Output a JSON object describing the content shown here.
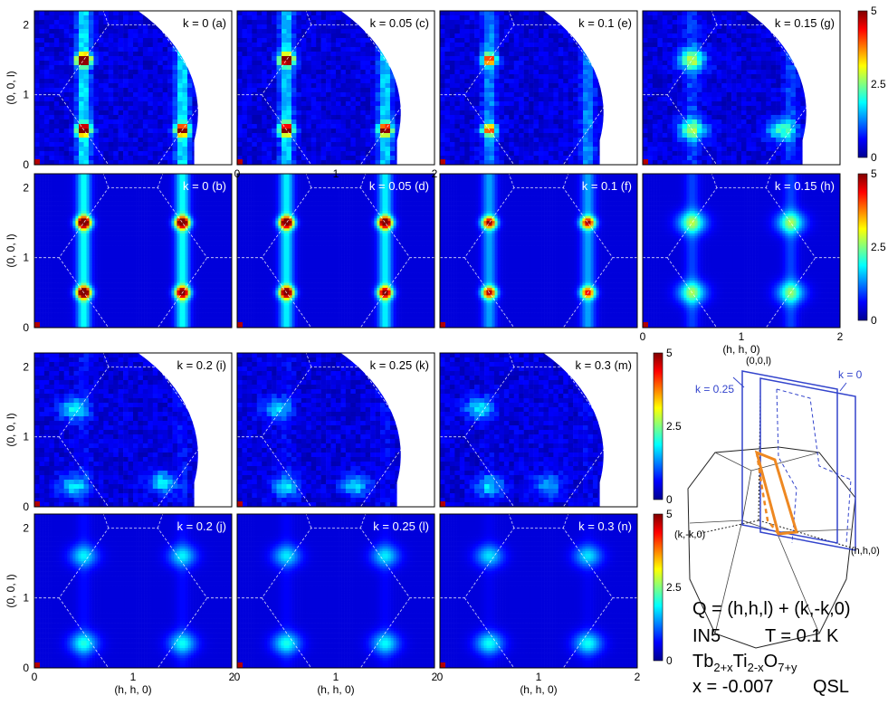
{
  "figure": {
    "colorbar_ticks": [
      "0",
      "2.5",
      "5"
    ],
    "axis_x_label": "(h, h, 0)",
    "axis_y_label": "(0, 0, l)",
    "tick_x": [
      "0",
      "1",
      "2"
    ],
    "tick_y": [
      "0",
      "1",
      "2"
    ]
  },
  "chart_data": [
    {
      "type": "heatmap",
      "panel": "a",
      "label": "k = 0 (a)",
      "kind": "data",
      "k": 0,
      "xlim": [
        0,
        2
      ],
      "ylim": [
        0,
        2.2
      ],
      "zlim": [
        0,
        5
      ],
      "hot_spots": [
        [
          0.5,
          0.5,
          4.6
        ],
        [
          0.5,
          1.5,
          4.8
        ],
        [
          1.5,
          0.5,
          4.0
        ]
      ],
      "rod_intensity": 1.4
    },
    {
      "type": "heatmap",
      "panel": "c",
      "label": "k = 0.05 (c)",
      "kind": "data",
      "k": 0.05,
      "xlim": [
        0,
        2
      ],
      "ylim": [
        0,
        2.2
      ],
      "zlim": [
        0,
        5
      ],
      "hot_spots": [
        [
          0.5,
          0.5,
          4.2
        ],
        [
          0.5,
          1.5,
          4.6
        ],
        [
          1.5,
          0.5,
          3.8
        ]
      ],
      "rod_intensity": 1.3
    },
    {
      "type": "heatmap",
      "panel": "e",
      "label": "k = 0.1 (e)",
      "kind": "data",
      "k": 0.1,
      "xlim": [
        0,
        2
      ],
      "ylim": [
        0,
        2.2
      ],
      "zlim": [
        0,
        5
      ],
      "hot_spots": [
        [
          0.5,
          0.5,
          3.0
        ],
        [
          0.5,
          1.5,
          3.3
        ]
      ],
      "rod_intensity": 0.9
    },
    {
      "type": "heatmap",
      "panel": "g",
      "label": "k = 0.15 (g)",
      "kind": "data",
      "k": 0.15,
      "xlim": [
        0,
        2
      ],
      "ylim": [
        0,
        2.2
      ],
      "zlim": [
        0,
        5
      ],
      "hot_spots": [
        [
          0.5,
          0.5,
          1.9
        ],
        [
          0.5,
          1.5,
          2.0
        ],
        [
          1.4,
          0.5,
          1.6
        ]
      ],
      "rod_intensity": 0.5
    },
    {
      "type": "heatmap",
      "panel": "b",
      "label": "k = 0 (b)",
      "kind": "calc",
      "k": 0,
      "xlim": [
        0,
        2
      ],
      "ylim": [
        0,
        2.2
      ],
      "zlim": [
        0,
        5
      ],
      "hot_spots": [
        [
          0.5,
          0.5,
          4.8
        ],
        [
          0.5,
          1.5,
          4.9
        ],
        [
          1.5,
          0.5,
          4.2
        ],
        [
          1.5,
          1.5,
          4.7
        ]
      ],
      "rod_intensity": 1.5
    },
    {
      "type": "heatmap",
      "panel": "d",
      "label": "k = 0.05 (d)",
      "kind": "calc",
      "k": 0.05,
      "xlim": [
        0,
        2
      ],
      "ylim": [
        0,
        2.2
      ],
      "zlim": [
        0,
        5
      ],
      "hot_spots": [
        [
          0.5,
          0.5,
          4.6
        ],
        [
          0.5,
          1.5,
          4.8
        ],
        [
          1.5,
          0.5,
          4.0
        ],
        [
          1.5,
          1.5,
          4.6
        ]
      ],
      "rod_intensity": 1.4
    },
    {
      "type": "heatmap",
      "panel": "f",
      "label": "k = 0.1 (f)",
      "kind": "calc",
      "k": 0.1,
      "xlim": [
        0,
        2
      ],
      "ylim": [
        0,
        2.2
      ],
      "zlim": [
        0,
        5
      ],
      "hot_spots": [
        [
          0.5,
          0.5,
          3.6
        ],
        [
          0.5,
          1.5,
          3.8
        ],
        [
          1.5,
          0.5,
          3.2
        ],
        [
          1.5,
          1.5,
          3.6
        ]
      ],
      "rod_intensity": 1.0
    },
    {
      "type": "heatmap",
      "panel": "h",
      "label": "k = 0.15 (h)",
      "kind": "calc",
      "k": 0.15,
      "xlim": [
        0,
        2
      ],
      "ylim": [
        0,
        2.2
      ],
      "zlim": [
        0,
        5
      ],
      "hot_spots": [
        [
          0.5,
          0.5,
          1.8
        ],
        [
          0.5,
          1.5,
          1.9
        ],
        [
          1.5,
          0.5,
          1.7
        ],
        [
          1.5,
          1.5,
          1.8
        ]
      ],
      "rod_intensity": 0.5
    },
    {
      "type": "heatmap",
      "panel": "i",
      "label": "k = 0.2 (i)",
      "kind": "data",
      "k": 0.2,
      "xlim": [
        0,
        2
      ],
      "ylim": [
        0,
        2.2
      ],
      "zlim": [
        0,
        5
      ],
      "hot_spots": [
        [
          0.4,
          0.3,
          1.3
        ],
        [
          0.4,
          1.4,
          1.4
        ],
        [
          1.3,
          0.35,
          1.3
        ]
      ],
      "rod_intensity": 0.2
    },
    {
      "type": "heatmap",
      "panel": "k",
      "label": "k = 0.25 (k)",
      "kind": "data",
      "k": 0.25,
      "xlim": [
        0,
        2
      ],
      "ylim": [
        0,
        2.2
      ],
      "zlim": [
        0,
        5
      ],
      "hot_spots": [
        [
          0.5,
          0.3,
          1.2
        ],
        [
          0.4,
          1.4,
          1.2
        ],
        [
          1.2,
          0.3,
          1.2
        ]
      ],
      "rod_intensity": 0.15
    },
    {
      "type": "heatmap",
      "panel": "m",
      "label": "k = 0.3 (m)",
      "kind": "data",
      "k": 0.3,
      "xlim": [
        0,
        2
      ],
      "ylim": [
        0,
        2.2
      ],
      "zlim": [
        0,
        5
      ],
      "hot_spots": [
        [
          0.5,
          0.3,
          1.2
        ],
        [
          0.4,
          1.4,
          1.3
        ],
        [
          1.1,
          0.3,
          1.1
        ]
      ],
      "rod_intensity": 0.1
    },
    {
      "type": "heatmap",
      "panel": "j",
      "label": "k = 0.2 (j)",
      "kind": "calc",
      "k": 0.2,
      "xlim": [
        0,
        2
      ],
      "ylim": [
        0,
        2.2
      ],
      "zlim": [
        0,
        5
      ],
      "hot_spots": [
        [
          0.5,
          0.35,
          1.4
        ],
        [
          1.5,
          0.35,
          1.3
        ],
        [
          0.5,
          1.6,
          1.2
        ],
        [
          1.5,
          1.6,
          1.2
        ]
      ],
      "rod_intensity": 0.2
    },
    {
      "type": "heatmap",
      "panel": "l",
      "label": "k = 0.25 (l)",
      "kind": "calc",
      "k": 0.25,
      "xlim": [
        0,
        2
      ],
      "ylim": [
        0,
        2.2
      ],
      "zlim": [
        0,
        5
      ],
      "hot_spots": [
        [
          0.5,
          0.35,
          1.4
        ],
        [
          1.5,
          0.35,
          1.3
        ],
        [
          0.5,
          1.6,
          1.2
        ],
        [
          1.5,
          1.6,
          1.2
        ]
      ],
      "rod_intensity": 0.15
    },
    {
      "type": "heatmap",
      "panel": "n",
      "label": "k = 0.3 (n)",
      "kind": "calc",
      "k": 0.3,
      "xlim": [
        0,
        2
      ],
      "ylim": [
        0,
        2.2
      ],
      "zlim": [
        0,
        5
      ],
      "hot_spots": [
        [
          0.5,
          0.35,
          1.4
        ],
        [
          1.5,
          0.35,
          1.4
        ],
        [
          0.5,
          1.6,
          1.2
        ],
        [
          1.5,
          1.6,
          1.2
        ]
      ],
      "rod_intensity": 0.1
    }
  ],
  "diagram": {
    "label_k025": "k = 0.25",
    "label_k0": "k = 0",
    "label_00l": "(0,0,l)",
    "label_kmk0": "(k,-k,0)",
    "label_hh0": "(h,h,0)"
  },
  "annotation": {
    "q_formula": "Q = (h,h,l) + (k,-k,0)",
    "instrument": "IN5",
    "temperature": "T = 0.1 K",
    "formula_main_1": "Tb",
    "formula_sub_1": "2+x",
    "formula_main_2": "Ti",
    "formula_sub_2": "2-x",
    "formula_main_3": "O",
    "formula_sub_3": "7+y",
    "x_value": "x = -0.007",
    "phase": "QSL"
  },
  "colors": {
    "diagram_blue": "#3344cc",
    "diagram_orange": "#ee8822",
    "bz_line": "#ffffff"
  }
}
